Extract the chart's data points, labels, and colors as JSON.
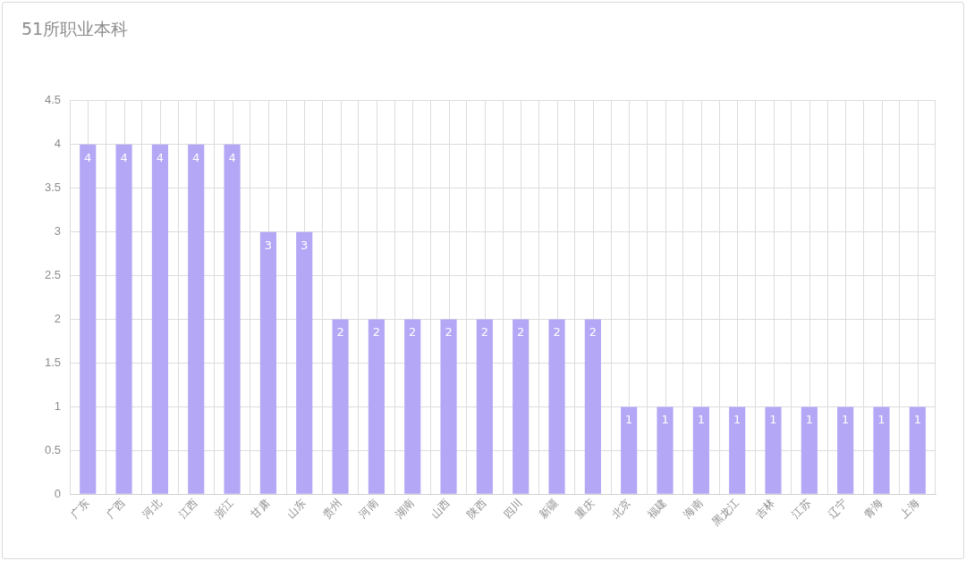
{
  "chart_data": {
    "type": "bar",
    "title": "51所职业本科",
    "categories": [
      "广东",
      "广西",
      "河北",
      "江西",
      "浙江",
      "甘肃",
      "山东",
      "贵州",
      "河南",
      "湖南",
      "山西",
      "陕西",
      "四川",
      "新疆",
      "重庆",
      "北京",
      "福建",
      "海南",
      "黑龙江",
      "吉林",
      "江苏",
      "辽宁",
      "青海",
      "上海"
    ],
    "values": [
      4,
      4,
      4,
      4,
      4,
      3,
      3,
      2,
      2,
      2,
      2,
      2,
      2,
      2,
      2,
      1,
      1,
      1,
      1,
      1,
      1,
      1,
      1,
      1
    ],
    "color": "#b4a7f5",
    "ylim": [
      0,
      4.5
    ],
    "yticks": [
      0,
      0.5,
      1,
      1.5,
      2,
      2.5,
      3,
      3.5,
      4,
      4.5
    ],
    "grid": true,
    "data_labels": true
  }
}
